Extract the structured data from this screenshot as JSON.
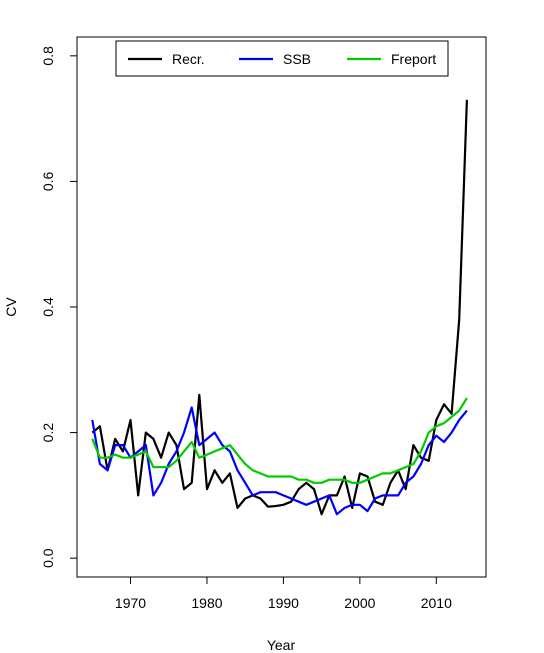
{
  "chart_data": {
    "type": "line",
    "xlabel": "Year",
    "ylabel": "CV",
    "xlim": [
      1963,
      2016.5
    ],
    "ylim": [
      -0.03,
      0.83
    ],
    "x_ticks": [
      "1970",
      "1980",
      "1990",
      "2000",
      "2010"
    ],
    "y_ticks": [
      "0.0",
      "0.2",
      "0.4",
      "0.6",
      "0.8"
    ],
    "legend_position": "top-center",
    "x": [
      1965,
      1966,
      1967,
      1968,
      1969,
      1970,
      1971,
      1972,
      1973,
      1974,
      1975,
      1976,
      1977,
      1978,
      1979,
      1980,
      1981,
      1982,
      1983,
      1984,
      1985,
      1986,
      1987,
      1988,
      1989,
      1990,
      1991,
      1992,
      1993,
      1994,
      1995,
      1996,
      1997,
      1998,
      1999,
      2000,
      2001,
      2002,
      2003,
      2004,
      2005,
      2006,
      2007,
      2008,
      2009,
      2010,
      2011,
      2012,
      2013,
      2014
    ],
    "series": [
      {
        "name": "Recr.",
        "color": "#000000",
        "values": [
          0.2,
          0.21,
          0.14,
          0.19,
          0.17,
          0.22,
          0.1,
          0.2,
          0.19,
          0.16,
          0.2,
          0.18,
          0.11,
          0.12,
          0.26,
          0.11,
          0.14,
          0.12,
          0.135,
          0.08,
          0.095,
          0.1,
          0.095,
          0.082,
          0.083,
          0.085,
          0.09,
          0.11,
          0.12,
          0.11,
          0.07,
          0.1,
          0.1,
          0.13,
          0.08,
          0.135,
          0.13,
          0.09,
          0.085,
          0.12,
          0.14,
          0.11,
          0.18,
          0.16,
          0.155,
          0.22,
          0.245,
          0.23,
          0.38,
          0.73
        ]
      },
      {
        "name": "SSB",
        "color": "#0000ff",
        "values": [
          0.22,
          0.15,
          0.14,
          0.18,
          0.18,
          0.16,
          0.17,
          0.18,
          0.1,
          0.12,
          0.15,
          0.17,
          0.2,
          0.24,
          0.18,
          0.19,
          0.2,
          0.18,
          0.17,
          0.14,
          0.12,
          0.1,
          0.105,
          0.105,
          0.105,
          0.1,
          0.095,
          0.09,
          0.085,
          0.09,
          0.095,
          0.1,
          0.07,
          0.08,
          0.085,
          0.085,
          0.075,
          0.095,
          0.1,
          0.1,
          0.1,
          0.12,
          0.13,
          0.15,
          0.18,
          0.195,
          0.185,
          0.2,
          0.22,
          0.235
        ]
      },
      {
        "name": "Freport",
        "color": "#00cc00",
        "values": [
          0.19,
          0.16,
          0.16,
          0.165,
          0.16,
          0.16,
          0.165,
          0.17,
          0.145,
          0.145,
          0.145,
          0.155,
          0.17,
          0.185,
          0.16,
          0.165,
          0.17,
          0.175,
          0.18,
          0.165,
          0.15,
          0.14,
          0.135,
          0.13,
          0.13,
          0.13,
          0.13,
          0.125,
          0.125,
          0.12,
          0.12,
          0.125,
          0.125,
          0.125,
          0.12,
          0.12,
          0.125,
          0.13,
          0.135,
          0.135,
          0.14,
          0.145,
          0.15,
          0.17,
          0.2,
          0.21,
          0.215,
          0.225,
          0.235,
          0.255
        ]
      }
    ]
  }
}
